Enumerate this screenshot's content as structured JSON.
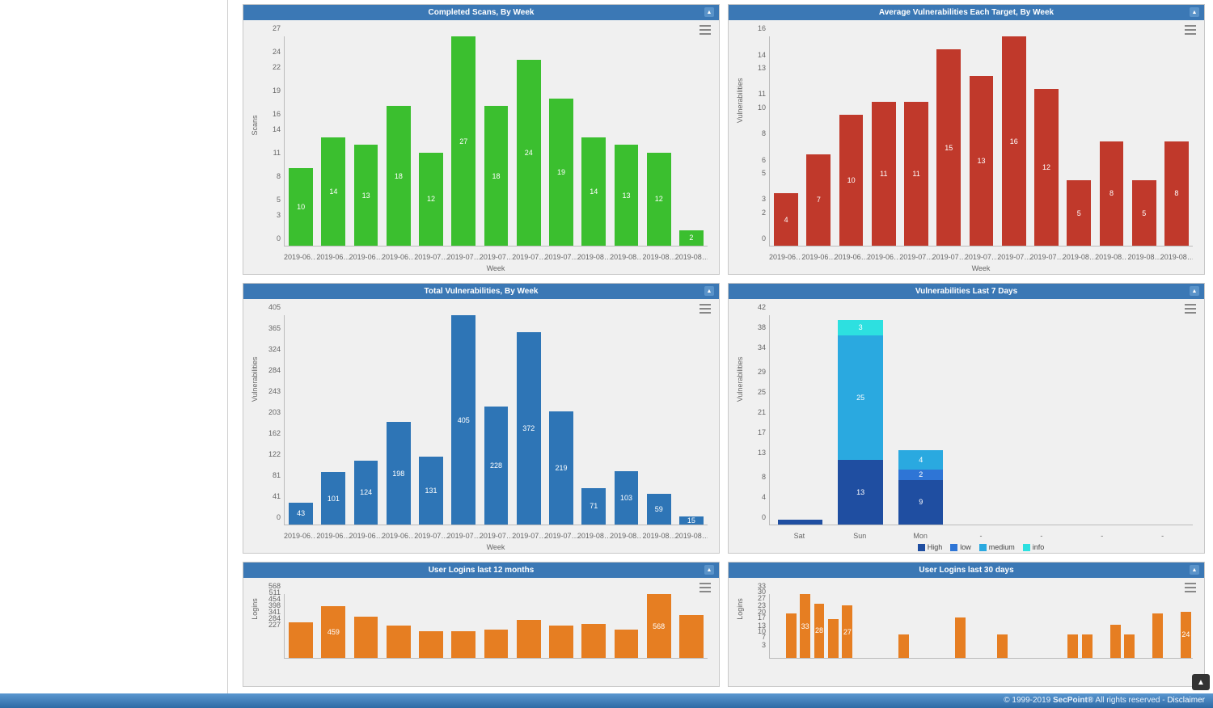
{
  "palette": {
    "panel_header_bg": "#3b78b5",
    "panel_bg": "#f0f0f0",
    "axis_color": "#bbbbbb",
    "text_muted": "#666666"
  },
  "footer": {
    "copyright": "© 1999-2019 ",
    "brand": "SecPoint®",
    "rights": " All rights reserved - ",
    "disclaimer": "Disclaimer"
  },
  "charts": {
    "completed_scans": {
      "title": "Completed Scans, By Week",
      "type": "bar",
      "ylabel": "Scans",
      "xlabel": "Week",
      "bar_color": "#3bbf2f",
      "ylim": [
        0,
        27
      ],
      "yticks": [
        0,
        3,
        5,
        8,
        11,
        14,
        16,
        19,
        22,
        24,
        27
      ],
      "categories": [
        "2019-06…",
        "2019-06…",
        "2019-06…",
        "2019-06…",
        "2019-07…",
        "2019-07…",
        "2019-07…",
        "2019-07…",
        "2019-07…",
        "2019-08…",
        "2019-08…",
        "2019-08…",
        "2019-08…"
      ],
      "values": [
        10,
        14,
        13,
        18,
        12,
        27,
        18,
        24,
        19,
        14,
        13,
        12,
        2
      ]
    },
    "avg_vuln": {
      "title": "Average Vulnerabilities Each Target, By Week",
      "type": "bar",
      "ylabel": "Vulnerabilities",
      "xlabel": "Week",
      "bar_color": "#c0392b",
      "ylim": [
        0,
        16
      ],
      "yticks": [
        0,
        2,
        3,
        5,
        6,
        8,
        10,
        11,
        13,
        14,
        16
      ],
      "categories": [
        "2019-06…",
        "2019-06…",
        "2019-06…",
        "2019-06…",
        "2019-07…",
        "2019-07…",
        "2019-07…",
        "2019-07…",
        "2019-07…",
        "2019-08…",
        "2019-08…",
        "2019-08…",
        "2019-08…"
      ],
      "values": [
        4,
        7,
        10,
        11,
        11,
        15,
        13,
        16,
        12,
        5,
        8,
        5,
        8
      ]
    },
    "total_vuln": {
      "title": "Total Vulnerabilities, By Week",
      "type": "bar",
      "ylabel": "Vulnerabilities",
      "xlabel": "Week",
      "bar_color": "#2e75b6",
      "ylim": [
        0,
        405
      ],
      "yticks": [
        0,
        41,
        81,
        122,
        162,
        203,
        243,
        284,
        324,
        365,
        405
      ],
      "categories": [
        "2019-06…",
        "2019-06…",
        "2019-06…",
        "2019-06…",
        "2019-07…",
        "2019-07…",
        "2019-07…",
        "2019-07…",
        "2019-07…",
        "2019-08…",
        "2019-08…",
        "2019-08…",
        "2019-08…"
      ],
      "values": [
        43,
        101,
        124,
        198,
        131,
        405,
        228,
        372,
        219,
        71,
        103,
        59,
        15
      ]
    },
    "vuln_7days": {
      "title": "Vulnerabilities Last 7 Days",
      "type": "stacked-bar",
      "ylabel": "Vulnerabilities",
      "ylim": [
        0,
        42
      ],
      "yticks": [
        0,
        4,
        8,
        13,
        17,
        21,
        25,
        29,
        34,
        38,
        42
      ],
      "categories": [
        "Sat",
        "Sun",
        "Mon",
        "-",
        "-",
        "-",
        "-"
      ],
      "series": [
        {
          "name": "High",
          "color": "#1f4ea1"
        },
        {
          "name": "low",
          "color": "#2e75d6"
        },
        {
          "name": "medium",
          "color": "#2aa9e0"
        },
        {
          "name": "info",
          "color": "#2de0e0"
        }
      ],
      "stacks": [
        [
          1,
          0,
          0,
          0
        ],
        [
          13,
          0,
          25,
          3
        ],
        [
          9,
          2,
          4,
          0
        ],
        [
          0,
          0,
          0,
          0
        ],
        [
          0,
          0,
          0,
          0
        ],
        [
          0,
          0,
          0,
          0
        ],
        [
          0,
          0,
          0,
          0
        ]
      ]
    },
    "logins_12m": {
      "title": "User Logins last 12 months",
      "type": "bar",
      "ylabel": "Logins",
      "bar_color": "#e67e22",
      "ylim": [
        0,
        568
      ],
      "yticks": [
        227,
        284,
        341,
        398,
        454,
        511,
        568
      ],
      "categories": [
        "",
        "",
        "",
        "",
        "",
        "",
        "",
        "",
        "",
        "",
        "",
        "",
        ""
      ],
      "values": [
        320,
        459,
        370,
        290,
        240,
        240,
        250,
        340,
        290,
        300,
        250,
        568,
        380
      ],
      "show_labels": [
        null,
        "459",
        null,
        null,
        null,
        null,
        null,
        null,
        null,
        null,
        null,
        "568",
        null
      ]
    },
    "logins_30d": {
      "title": "User Logins last 30 days",
      "type": "bar",
      "ylabel": "Logins",
      "bar_color": "#e67e22",
      "ylim": [
        0,
        33
      ],
      "yticks": [
        3,
        7,
        10,
        13,
        17,
        20,
        23,
        27,
        30,
        33
      ],
      "categories": [
        "",
        "",
        "",
        "",
        "",
        "",
        "",
        "",
        "",
        "",
        "",
        "",
        "",
        "",
        "",
        "",
        "",
        "",
        "",
        "",
        "",
        "",
        "",
        "",
        "",
        "",
        "",
        "",
        "",
        ""
      ],
      "values": [
        0,
        23,
        33,
        28,
        20,
        27,
        0,
        0,
        0,
        12,
        0,
        0,
        0,
        21,
        0,
        0,
        12,
        0,
        0,
        0,
        0,
        12,
        12,
        0,
        17,
        12,
        0,
        23,
        0,
        24
      ],
      "show_labels": [
        null,
        null,
        "33",
        "28",
        null,
        "27",
        null,
        null,
        null,
        null,
        null,
        null,
        null,
        null,
        null,
        null,
        null,
        null,
        null,
        null,
        null,
        null,
        null,
        null,
        null,
        null,
        null,
        null,
        null,
        "24"
      ]
    }
  }
}
